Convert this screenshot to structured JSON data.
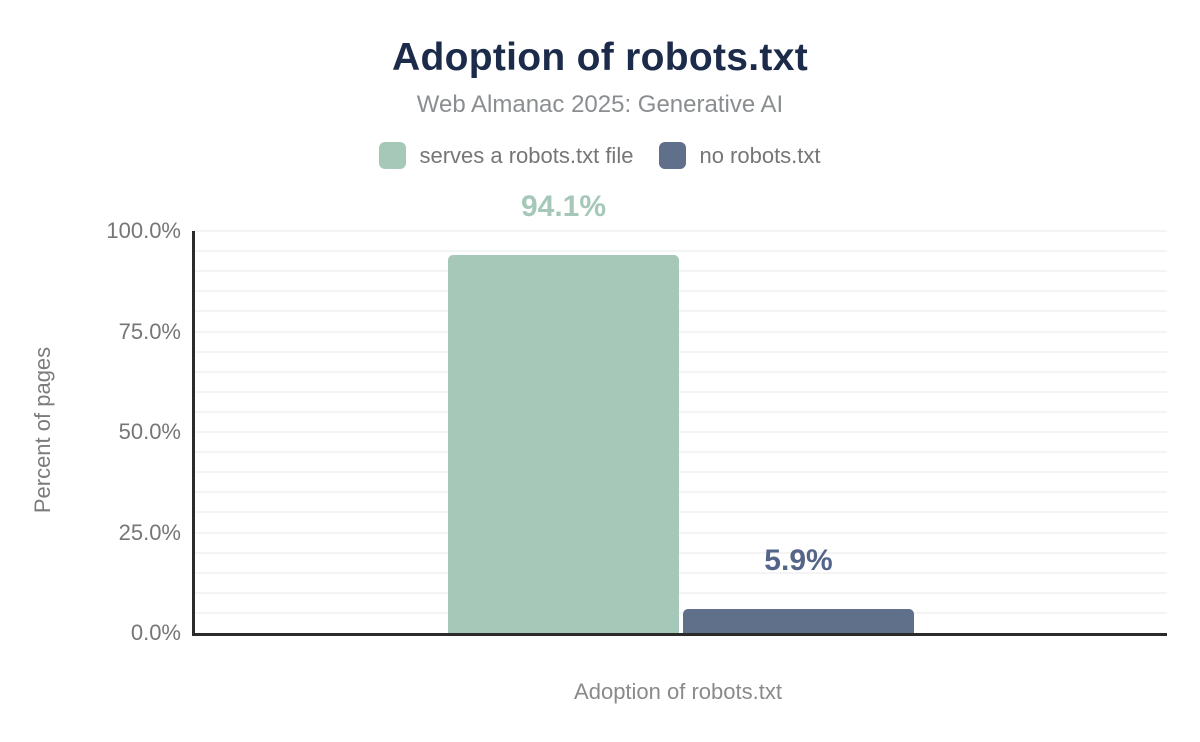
{
  "header": {
    "title": "Adoption of robots.txt",
    "subtitle": "Web Almanac 2025: Generative AI"
  },
  "legend": {
    "items": [
      {
        "label": "serves a robots.txt file",
        "color": "#a5c8b8"
      },
      {
        "label": "no robots.txt",
        "color": "#606f8a"
      }
    ]
  },
  "chart_data": {
    "type": "bar",
    "title": "Adoption of robots.txt",
    "subtitle": "Web Almanac 2025: Generative AI",
    "xlabel": "Adoption of robots.txt",
    "ylabel": "Percent of pages",
    "ylim": [
      0,
      100
    ],
    "ytick_values": [
      0,
      25,
      50,
      75,
      100
    ],
    "ytick_labels": [
      "0.0%",
      "25.0%",
      "50.0%",
      "75.0%",
      "100.0%"
    ],
    "minor_grid_step": 5,
    "grid": true,
    "legend_position": "top",
    "categories": [
      "Adoption of robots.txt"
    ],
    "series": [
      {
        "name": "serves a robots.txt file",
        "value": 94.1,
        "data_label": "94.1%",
        "color": "#a5c8b8",
        "label_color": "#a5c8b8"
      },
      {
        "name": "no robots.txt",
        "value": 5.9,
        "data_label": "5.9%",
        "color": "#606f8a",
        "label_color": "#55658a"
      }
    ]
  },
  "colors": {
    "title": "#1c2b4a",
    "subtitle": "#8b8e90",
    "axis_line": "#2b2b2b",
    "grid_line": "#f4f4f4",
    "tick_label": "#767676",
    "axis_label": "#8a8a8a"
  }
}
